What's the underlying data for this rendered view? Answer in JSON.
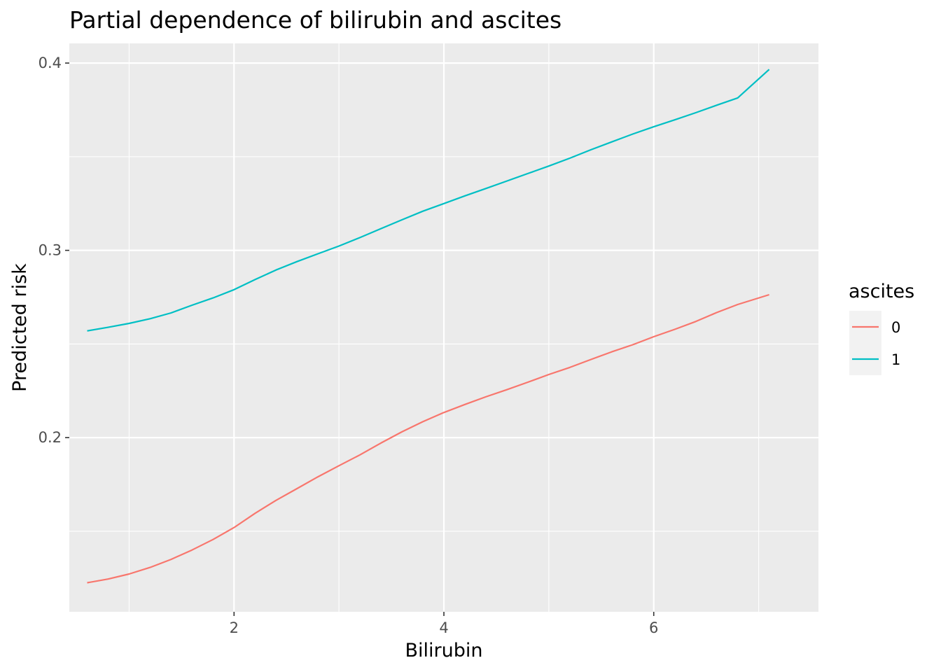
{
  "chart_data": {
    "type": "line",
    "title": "Partial dependence of bilirubin and ascites",
    "xlabel": "Bilirubin",
    "ylabel": "Predicted risk",
    "xlim": [
      0.43,
      7.57
    ],
    "ylim": [
      0.107,
      0.4105
    ],
    "x_ticks": [
      2,
      4,
      6
    ],
    "x_tick_labels": [
      "2",
      "4",
      "6"
    ],
    "x_minor_ticks": [
      1,
      3,
      5,
      7
    ],
    "y_ticks": [
      0.2,
      0.3,
      0.4
    ],
    "y_tick_labels": [
      "0.2",
      "0.3",
      "0.4"
    ],
    "y_minor_ticks": [
      0.15,
      0.25,
      0.35
    ],
    "grid": true,
    "legend": {
      "title": "ascites",
      "position": "right"
    },
    "x": [
      0.6,
      0.8,
      1.0,
      1.2,
      1.4,
      1.6,
      1.8,
      2.0,
      2.2,
      2.4,
      2.6,
      2.8,
      3.0,
      3.2,
      3.4,
      3.6,
      3.8,
      4.0,
      4.2,
      4.4,
      4.6,
      4.8,
      5.0,
      5.2,
      5.4,
      5.6,
      5.8,
      6.0,
      6.2,
      6.4,
      6.6,
      6.8,
      7.1
    ],
    "series": [
      {
        "name": "0",
        "color": "#F8766D",
        "values": [
          0.1225,
          0.1245,
          0.1272,
          0.1307,
          0.135,
          0.14,
          0.1456,
          0.152,
          0.1596,
          0.1665,
          0.1728,
          0.1791,
          0.185,
          0.1908,
          0.1971,
          0.2031,
          0.2085,
          0.2134,
          0.2177,
          0.2218,
          0.2256,
          0.2296,
          0.2337,
          0.2375,
          0.2417,
          0.2458,
          0.2496,
          0.2539,
          0.2578,
          0.262,
          0.2668,
          0.2711,
          0.2763
        ]
      },
      {
        "name": "1",
        "color": "#00BFC4",
        "values": [
          0.257,
          0.2589,
          0.261,
          0.2635,
          0.2666,
          0.2707,
          0.2746,
          0.279,
          0.2844,
          0.2895,
          0.294,
          0.2982,
          0.3023,
          0.3068,
          0.3116,
          0.3163,
          0.3209,
          0.325,
          0.3291,
          0.333,
          0.337,
          0.341,
          0.345,
          0.3492,
          0.3537,
          0.3579,
          0.3621,
          0.366,
          0.3697,
          0.3735,
          0.3775,
          0.3814,
          0.3966
        ]
      }
    ]
  }
}
